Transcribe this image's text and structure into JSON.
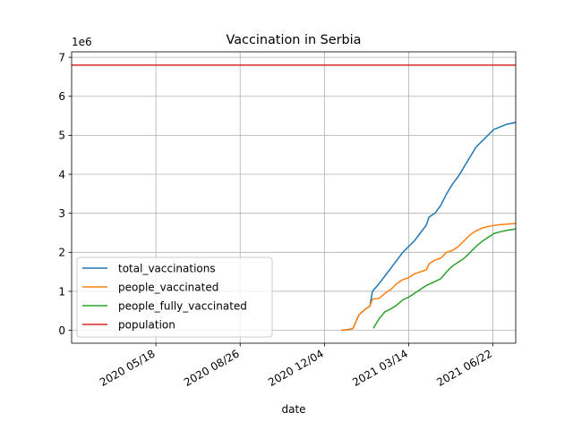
{
  "chart_data": {
    "type": "line",
    "title": "Vaccination in Serbia",
    "xlabel": "date",
    "ylabel": "",
    "y_scale_label": "1e6",
    "x_axis": {
      "type": "date",
      "range": [
        "2020-02-08",
        "2021-07-19"
      ],
      "ticks": [
        "2020-05-18",
        "2020-08-26",
        "2020-12-04",
        "2021-03-14",
        "2021-06-22"
      ],
      "tick_labels": [
        "2020 05/18",
        "2020 08/26",
        "2020 12/04",
        "2021 03/14",
        "2021 06/22"
      ]
    },
    "y_axis": {
      "range": [
        -330000,
        7140000
      ],
      "ticks": [
        0,
        1000000,
        2000000,
        3000000,
        4000000,
        5000000,
        6000000,
        7000000
      ],
      "tick_labels": [
        "0",
        "1",
        "2",
        "3",
        "4",
        "5",
        "6",
        "7"
      ]
    },
    "grid": true,
    "legend_position": "lower-left",
    "series": [
      {
        "name": "total_vaccinations",
        "color": "#1f77b4",
        "points": [
          [
            "2020-12-24",
            0
          ],
          [
            "2021-01-01",
            20000
          ],
          [
            "2021-01-07",
            50000
          ],
          [
            "2021-01-14",
            400000
          ],
          [
            "2021-01-22",
            550000
          ],
          [
            "2021-01-27",
            620000
          ],
          [
            "2021-01-30",
            1000000
          ],
          [
            "2021-02-07",
            1200000
          ],
          [
            "2021-02-14",
            1400000
          ],
          [
            "2021-02-21",
            1600000
          ],
          [
            "2021-02-28",
            1800000
          ],
          [
            "2021-03-07",
            2000000
          ],
          [
            "2021-03-14",
            2150000
          ],
          [
            "2021-03-21",
            2300000
          ],
          [
            "2021-03-28",
            2500000
          ],
          [
            "2021-04-04",
            2700000
          ],
          [
            "2021-04-07",
            2900000
          ],
          [
            "2021-04-14",
            3000000
          ],
          [
            "2021-04-21",
            3200000
          ],
          [
            "2021-04-28",
            3500000
          ],
          [
            "2021-05-05",
            3750000
          ],
          [
            "2021-05-12",
            3950000
          ],
          [
            "2021-05-19",
            4200000
          ],
          [
            "2021-05-26",
            4450000
          ],
          [
            "2021-06-02",
            4700000
          ],
          [
            "2021-06-09",
            4850000
          ],
          [
            "2021-06-16",
            5000000
          ],
          [
            "2021-06-23",
            5150000
          ],
          [
            "2021-07-01",
            5220000
          ],
          [
            "2021-07-08",
            5280000
          ],
          [
            "2021-07-19",
            5330000
          ]
        ]
      },
      {
        "name": "people_vaccinated",
        "color": "#ff7f0e",
        "points": [
          [
            "2020-12-24",
            0
          ],
          [
            "2021-01-01",
            20000
          ],
          [
            "2021-01-07",
            50000
          ],
          [
            "2021-01-14",
            400000
          ],
          [
            "2021-01-22",
            550000
          ],
          [
            "2021-01-27",
            620000
          ],
          [
            "2021-01-30",
            800000
          ],
          [
            "2021-02-07",
            820000
          ],
          [
            "2021-02-14",
            950000
          ],
          [
            "2021-02-21",
            1050000
          ],
          [
            "2021-02-28",
            1200000
          ],
          [
            "2021-03-07",
            1300000
          ],
          [
            "2021-03-14",
            1350000
          ],
          [
            "2021-03-21",
            1450000
          ],
          [
            "2021-03-28",
            1500000
          ],
          [
            "2021-04-04",
            1550000
          ],
          [
            "2021-04-07",
            1700000
          ],
          [
            "2021-04-14",
            1800000
          ],
          [
            "2021-04-21",
            1850000
          ],
          [
            "2021-04-28",
            2000000
          ],
          [
            "2021-05-05",
            2050000
          ],
          [
            "2021-05-12",
            2150000
          ],
          [
            "2021-05-19",
            2300000
          ],
          [
            "2021-05-26",
            2450000
          ],
          [
            "2021-06-02",
            2550000
          ],
          [
            "2021-06-09",
            2620000
          ],
          [
            "2021-06-16",
            2660000
          ],
          [
            "2021-06-23",
            2690000
          ],
          [
            "2021-07-01",
            2710000
          ],
          [
            "2021-07-08",
            2720000
          ],
          [
            "2021-07-19",
            2740000
          ]
        ]
      },
      {
        "name": "people_fully_vaccinated",
        "color": "#2ca02c",
        "points": [
          [
            "2021-01-31",
            50000
          ],
          [
            "2021-02-07",
            300000
          ],
          [
            "2021-02-14",
            480000
          ],
          [
            "2021-02-21",
            550000
          ],
          [
            "2021-02-28",
            650000
          ],
          [
            "2021-03-07",
            780000
          ],
          [
            "2021-03-14",
            850000
          ],
          [
            "2021-03-21",
            950000
          ],
          [
            "2021-03-28",
            1050000
          ],
          [
            "2021-04-04",
            1150000
          ],
          [
            "2021-04-14",
            1250000
          ],
          [
            "2021-04-21",
            1320000
          ],
          [
            "2021-04-28",
            1500000
          ],
          [
            "2021-05-05",
            1650000
          ],
          [
            "2021-05-12",
            1750000
          ],
          [
            "2021-05-19",
            1850000
          ],
          [
            "2021-05-26",
            2000000
          ],
          [
            "2021-06-02",
            2150000
          ],
          [
            "2021-06-09",
            2280000
          ],
          [
            "2021-06-16",
            2380000
          ],
          [
            "2021-06-23",
            2480000
          ],
          [
            "2021-07-01",
            2530000
          ],
          [
            "2021-07-08",
            2560000
          ],
          [
            "2021-07-19",
            2600000
          ]
        ]
      },
      {
        "name": "population",
        "color": "#d62728",
        "points": [
          [
            "2020-02-08",
            6800000
          ],
          [
            "2021-07-19",
            6800000
          ]
        ]
      }
    ]
  }
}
